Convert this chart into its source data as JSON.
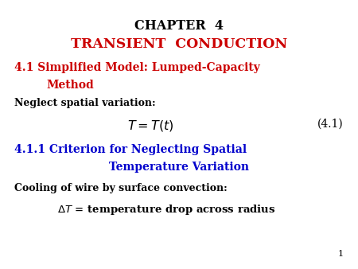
{
  "title_line1": "CHAPTER  4",
  "title_line2": "TRANSIENT  CONDUCTION",
  "title_color": "#cc0000",
  "title_black": "#000000",
  "section_41_line1": "4.1 Simplified Model: Lumped-Capacity",
  "section_41_line2": "Method",
  "section_41_color": "#cc0000",
  "neglect_text": "Neglect spatial variation:",
  "equation": "$T = T(t)$",
  "equation_label": "(4.1)",
  "section_411_line1": "4.1.1 Criterion for Neglecting Spatial",
  "section_411_line2": "Temperature Variation",
  "section_411_color": "#0000cc",
  "cooling_text": "Cooling of wire by surface convection:",
  "delta_text": "$\\Delta T$ = temperature drop across radius",
  "page_num": "1",
  "bg_color": "#ffffff",
  "text_black": "#000000",
  "fig_width": 4.5,
  "fig_height": 3.38,
  "fig_dpi": 100
}
